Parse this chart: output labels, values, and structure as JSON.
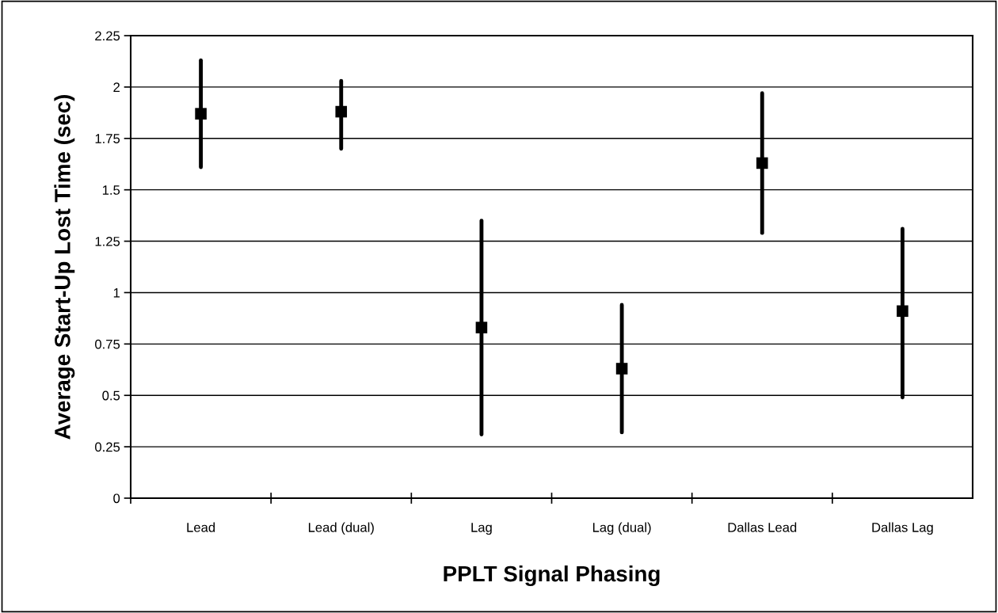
{
  "chart_data": {
    "type": "scatter",
    "xlabel": "PPLT Signal Phasing",
    "ylabel": "Average Start-Up Lost Time (sec)",
    "categories": [
      "Lead",
      "Lead (dual)",
      "Lag",
      "Lag (dual)",
      "Dallas Lead",
      "Dallas Lag"
    ],
    "series": [
      {
        "color": "#000000",
        "values": [
          1.87,
          1.88,
          0.83,
          0.63,
          1.63,
          0.91
        ],
        "errors": [
          [
            1.61,
            2.13
          ],
          [
            1.7,
            2.03
          ],
          [
            0.31,
            1.35
          ],
          [
            0.32,
            0.94
          ],
          [
            1.29,
            1.97
          ],
          [
            0.49,
            1.31
          ]
        ]
      }
    ],
    "ylim": [
      0,
      2.25
    ],
    "yticks": [
      0,
      0.25,
      0.5,
      0.75,
      1,
      1.25,
      1.5,
      1.75,
      2,
      2.25
    ],
    "marker": "square",
    "grid": "y",
    "legend": false
  }
}
